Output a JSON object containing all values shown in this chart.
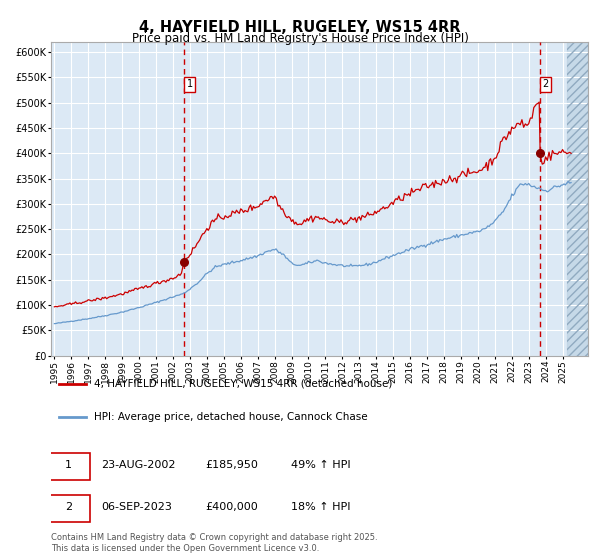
{
  "title": "4, HAYFIELD HILL, RUGELEY, WS15 4RR",
  "subtitle": "Price paid vs. HM Land Registry's House Price Index (HPI)",
  "bg_color": "#dce9f5",
  "grid_color": "#ffffff",
  "red_line_color": "#cc0000",
  "blue_line_color": "#6699cc",
  "hatch_color": "#b8cfe0",
  "ylim": [
    0,
    620000
  ],
  "yticks": [
    0,
    50000,
    100000,
    150000,
    200000,
    250000,
    300000,
    350000,
    400000,
    450000,
    500000,
    550000,
    600000
  ],
  "ytick_labels": [
    "£0",
    "£50K",
    "£100K",
    "£150K",
    "£200K",
    "£250K",
    "£300K",
    "£350K",
    "£400K",
    "£450K",
    "£500K",
    "£550K",
    "£600K"
  ],
  "sale1_x": 2002.648,
  "sale1_price": 185950,
  "sale2_x": 2023.676,
  "sale2_price": 400000,
  "hatch_start": 2025.25,
  "xmin": 1994.8,
  "xmax": 2026.5,
  "xtick_start": 1995,
  "xtick_end": 2025,
  "legend_red": "4, HAYFIELD HILL, RUGELEY, WS15 4RR (detached house)",
  "legend_blue": "HPI: Average price, detached house, Cannock Chase",
  "ann1_label": "1",
  "ann1_date": "23-AUG-2002",
  "ann1_price": "£185,950",
  "ann1_hpi": "49% ↑ HPI",
  "ann2_label": "2",
  "ann2_date": "06-SEP-2023",
  "ann2_price": "£400,000",
  "ann2_hpi": "18% ↑ HPI",
  "footer": "Contains HM Land Registry data © Crown copyright and database right 2025.\nThis data is licensed under the Open Government Licence v3.0."
}
